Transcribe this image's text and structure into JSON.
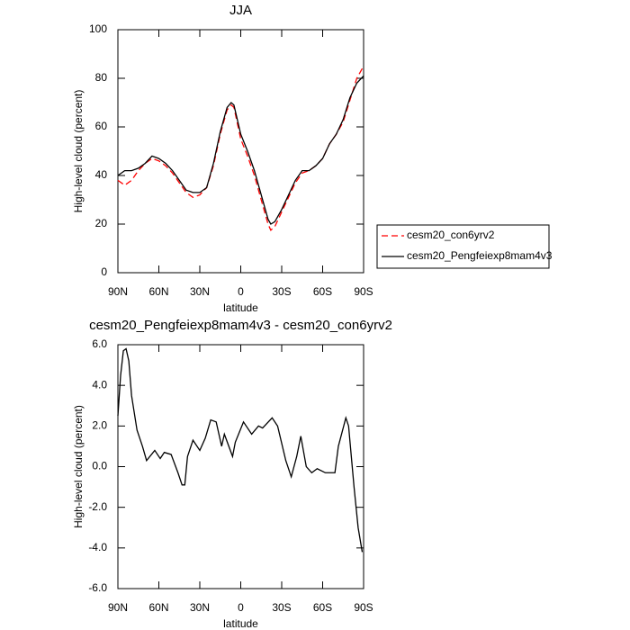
{
  "chart_data": [
    {
      "type": "line",
      "title": "JJA",
      "xlabel": "latitude",
      "ylabel": "High-level cloud (percent)",
      "xlim": [
        90,
        -90
      ],
      "xticks": [
        {
          "value": 90,
          "label": "90N"
        },
        {
          "value": 60,
          "label": "60N"
        },
        {
          "value": 30,
          "label": "30N"
        },
        0,
        {
          "value": -30,
          "label": "30S"
        },
        {
          "value": -60,
          "label": "60S"
        },
        {
          "value": -90,
          "label": "90S"
        }
      ],
      "ylim": [
        0,
        100
      ],
      "yticks": [
        0,
        20,
        40,
        60,
        80,
        100
      ],
      "x": [
        90,
        85,
        80,
        75,
        70,
        65,
        60,
        55,
        50,
        45,
        40,
        35,
        30,
        25,
        20,
        15,
        10,
        7,
        5,
        0,
        -5,
        -10,
        -15,
        -20,
        -22,
        -25,
        -30,
        -35,
        -40,
        -45,
        -50,
        -55,
        -60,
        -65,
        -70,
        -75,
        -80,
        -85,
        -90
      ],
      "series": [
        {
          "name": "cesm20_con6yrv2",
          "color": "#ff0000",
          "dash": true,
          "values": [
            38,
            36,
            38,
            42,
            45,
            47,
            46,
            44,
            41,
            37,
            33,
            31,
            32,
            35,
            44,
            57,
            67,
            69,
            68,
            55,
            48,
            40,
            30,
            20,
            17.5,
            19,
            25,
            31,
            37,
            41,
            42,
            44,
            47,
            53,
            57,
            62,
            71,
            80,
            85
          ]
        },
        {
          "name": "cesm20_Pengfeiexp8mam4v3",
          "color": "#000000",
          "dash": false,
          "values": [
            40,
            42,
            42,
            43,
            45,
            48,
            47,
            45,
            42,
            38,
            34,
            33,
            33,
            35,
            45,
            58,
            68,
            70,
            69,
            57,
            50,
            42,
            32,
            22,
            20,
            21,
            26,
            32,
            38,
            42,
            42,
            44,
            47,
            53,
            57,
            63,
            72,
            78,
            81
          ]
        }
      ]
    },
    {
      "type": "line",
      "title": "cesm20_Pengfeiexp8mam4v3 - cesm20_con6yrv2",
      "xlabel": "latitude",
      "ylabel": "High-level cloud (percent)",
      "xlim": [
        90,
        -90
      ],
      "xticks": [
        {
          "value": 90,
          "label": "90N"
        },
        {
          "value": 60,
          "label": "60N"
        },
        {
          "value": 30,
          "label": "30N"
        },
        0,
        {
          "value": -30,
          "label": "30S"
        },
        {
          "value": -60,
          "label": "60S"
        },
        {
          "value": -90,
          "label": "90S"
        }
      ],
      "ylim": [
        -6,
        6
      ],
      "yticks": [
        {
          "value": -6,
          "label": "-6.0"
        },
        {
          "value": -4,
          "label": "-4.0"
        },
        {
          "value": -2,
          "label": "-2.0"
        },
        {
          "value": 0,
          "label": "0.0"
        },
        {
          "value": 2,
          "label": "2.0"
        },
        {
          "value": 4,
          "label": "4.0"
        },
        {
          "value": 6,
          "label": "6.0"
        }
      ],
      "x": [
        90,
        88,
        86,
        84,
        82,
        80,
        76,
        72,
        69,
        63,
        59,
        56,
        51,
        46,
        43,
        41,
        39,
        35,
        30,
        26,
        22,
        18,
        14,
        12,
        6,
        4,
        -2,
        -8,
        -13,
        -16,
        -23,
        -27,
        -33,
        -37,
        -41,
        -44,
        -48,
        -52,
        -56,
        -62,
        -69,
        -71.5,
        -77,
        -79,
        -83,
        -86,
        -89
      ],
      "series": [
        {
          "name": "cesm20_Pengfeiexp8mam4v3 - cesm20_con6yrv2",
          "color": "#000000",
          "dash": false,
          "values": [
            2.5,
            4.5,
            5.7,
            5.8,
            5.2,
            3.5,
            1.8,
            1.0,
            0.3,
            0.8,
            0.4,
            0.7,
            0.6,
            -0.3,
            -0.9,
            -0.9,
            0.5,
            1.3,
            0.8,
            1.4,
            2.3,
            2.2,
            1.0,
            1.6,
            0.5,
            1.2,
            2.2,
            1.6,
            2.0,
            1.9,
            2.4,
            2.0,
            0.3,
            -0.5,
            0.5,
            1.5,
            0.0,
            -0.3,
            -0.1,
            -0.3,
            -0.3,
            1.0,
            2.4,
            2.0,
            -1.0,
            -3.0,
            -4.2
          ]
        }
      ]
    }
  ]
}
